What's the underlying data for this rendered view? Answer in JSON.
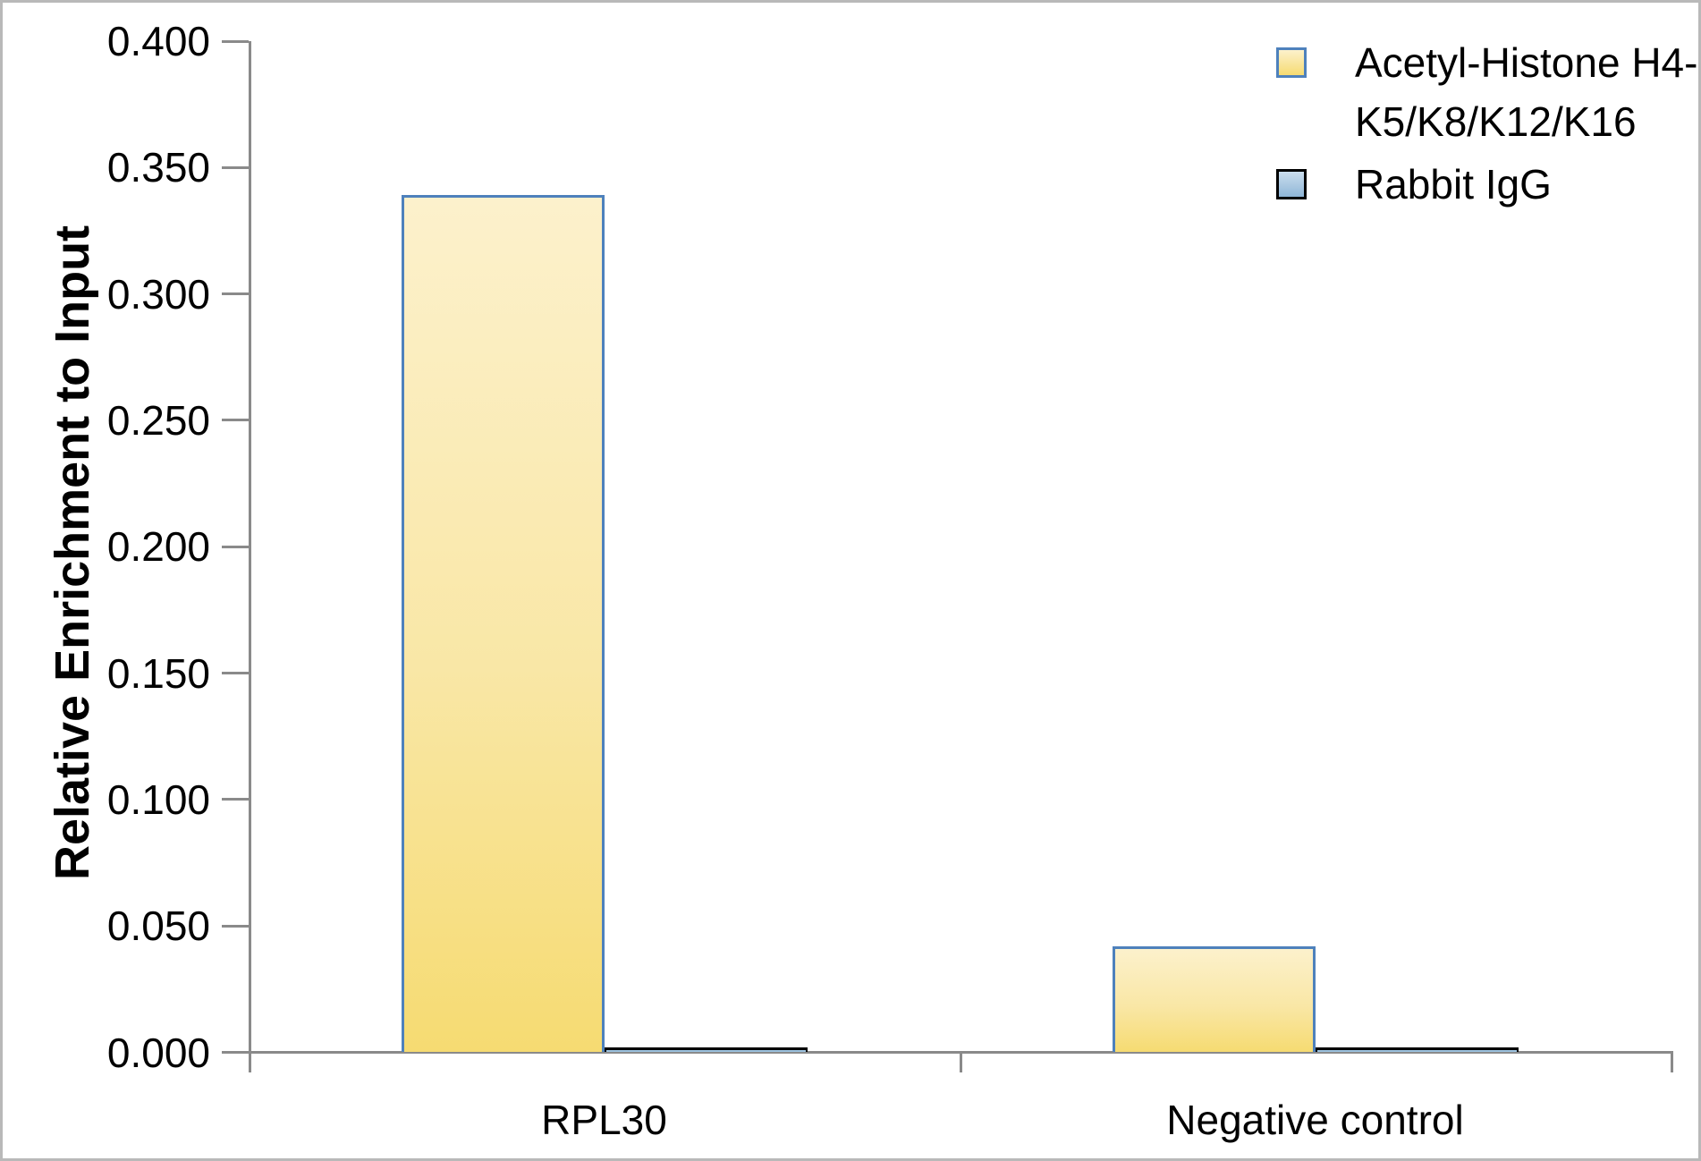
{
  "chart_data": {
    "type": "bar",
    "categories": [
      "RPL30",
      "Negative control"
    ],
    "series": [
      {
        "name": "Acetyl-Histone H4-K5/K8/K12/K16",
        "values": [
          0.339,
          0.042
        ]
      },
      {
        "name": "Rabbit IgG",
        "values": [
          0.002,
          0.002
        ]
      }
    ],
    "title": "",
    "xlabel": "",
    "ylabel": "Relative Enrichment to Input",
    "ylim": [
      0,
      0.4
    ],
    "ytick_step": 0.05,
    "yticks": [
      {
        "value": 0.0,
        "label": "0.000"
      },
      {
        "value": 0.05,
        "label": "0.050"
      },
      {
        "value": 0.1,
        "label": "0.100"
      },
      {
        "value": 0.15,
        "label": "0.150"
      },
      {
        "value": 0.2,
        "label": "0.200"
      },
      {
        "value": 0.25,
        "label": "0.250"
      },
      {
        "value": 0.3,
        "label": "0.300"
      },
      {
        "value": 0.35,
        "label": "0.350"
      },
      {
        "value": 0.4,
        "label": "0.400"
      }
    ],
    "grid": false,
    "legend_position": "top-right",
    "legend": [
      {
        "series": "Acetyl-Histone H4-K5/K8/K12/K16",
        "lines": [
          "Acetyl-Histone H4-",
          "K5/K8/K12/K16"
        ]
      },
      {
        "series": "Rabbit IgG",
        "lines": [
          "Rabbit IgG"
        ]
      }
    ],
    "colors": {
      "acetyl_fill_top": "#FCF1CC",
      "acetyl_fill_mid": "#F9E7A6",
      "acetyl_fill_bottom": "#F6DB72",
      "acetyl_border": "#4E81BC",
      "igg_fill_top": "#CBDEEE",
      "igg_fill_bottom": "#8FB6D7",
      "igg_bar_fill": "#9CC2DF",
      "igg_border": "#000000",
      "axis": "#8A8A8A"
    }
  }
}
